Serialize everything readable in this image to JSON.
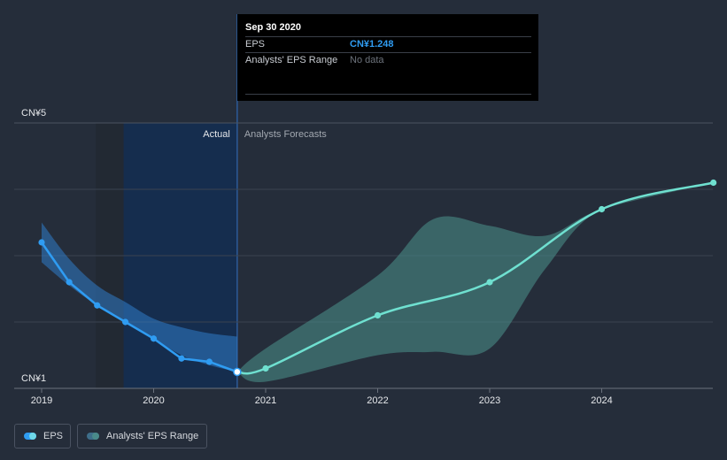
{
  "chart_data": {
    "type": "line",
    "title": "",
    "y_axis": {
      "min": 1,
      "max": 5,
      "tick_labels": [
        "CN¥5",
        "CN¥1"
      ],
      "grid": true
    },
    "x_axis": {
      "tick_labels": [
        "2019",
        "2020",
        "2021",
        "2022",
        "2023",
        "2024"
      ]
    },
    "divider": {
      "date": "2020-09-30",
      "left_label": "Actual",
      "right_label": "Analysts Forecasts"
    },
    "series": [
      {
        "name": "EPS",
        "color": "#2f9cf2",
        "forecast_color": "#6fe0d0",
        "actual": [
          {
            "x": "2019-01-01",
            "y": 3.2
          },
          {
            "x": "2019-04-01",
            "y": 2.6
          },
          {
            "x": "2019-07-01",
            "y": 2.25
          },
          {
            "x": "2019-10-01",
            "y": 2.0
          },
          {
            "x": "2020-01-01",
            "y": 1.75
          },
          {
            "x": "2020-04-01",
            "y": 1.45
          },
          {
            "x": "2020-07-01",
            "y": 1.4
          },
          {
            "x": "2020-09-30",
            "y": 1.248
          }
        ],
        "forecast": [
          {
            "x": "2020-09-30",
            "y": 1.248
          },
          {
            "x": "2021-01-01",
            "y": 1.3
          },
          {
            "x": "2022-01-01",
            "y": 2.1
          },
          {
            "x": "2023-01-01",
            "y": 2.6
          },
          {
            "x": "2024-01-01",
            "y": 3.7
          },
          {
            "x": "2024-12-31",
            "y": 4.1
          }
        ]
      },
      {
        "name": "Analysts' EPS Range",
        "color": "#3e6e8a",
        "actual_band": [
          {
            "x": "2019-01-01",
            "low": 2.9,
            "high": 3.5
          },
          {
            "x": "2019-04-01",
            "low": 2.55,
            "high": 2.95
          },
          {
            "x": "2019-07-01",
            "low": 2.25,
            "high": 2.55
          },
          {
            "x": "2019-10-01",
            "low": 2.0,
            "high": 2.3
          },
          {
            "x": "2020-01-01",
            "low": 1.75,
            "high": 2.05
          },
          {
            "x": "2020-04-01",
            "low": 1.5,
            "high": 1.92
          },
          {
            "x": "2020-07-01",
            "low": 1.35,
            "high": 1.83
          },
          {
            "x": "2020-09-30",
            "low": 1.248,
            "high": 1.78
          }
        ],
        "forecast_band": [
          {
            "x": "2020-09-30",
            "low": 1.248,
            "high": 1.248
          },
          {
            "x": "2021-01-01",
            "low": 1.1,
            "high": 1.6
          },
          {
            "x": "2022-01-01",
            "low": 1.5,
            "high": 2.7
          },
          {
            "x": "2022-07-01",
            "low": 1.55,
            "high": 3.55
          },
          {
            "x": "2023-01-01",
            "low": 1.6,
            "high": 3.45
          },
          {
            "x": "2023-07-01",
            "low": 2.8,
            "high": 3.3
          },
          {
            "x": "2024-01-01",
            "low": 3.7,
            "high": 3.7
          },
          {
            "x": "2024-12-31",
            "low": 4.1,
            "high": 4.1
          }
        ]
      }
    ],
    "legend": {
      "placement": "bottom-left",
      "items": [
        "EPS",
        "Analysts' EPS Range"
      ]
    }
  },
  "tooltip": {
    "date": "Sep 30 2020",
    "eps_label": "EPS",
    "eps_value": "CN¥1.248",
    "range_label": "Analysts' EPS Range",
    "range_value": "No data"
  },
  "colors": {
    "background": "#252d3a",
    "actual_shade": "#152d4e",
    "eps_actual": "#2f9cf2",
    "eps_forecast": "#6fe0d0"
  }
}
